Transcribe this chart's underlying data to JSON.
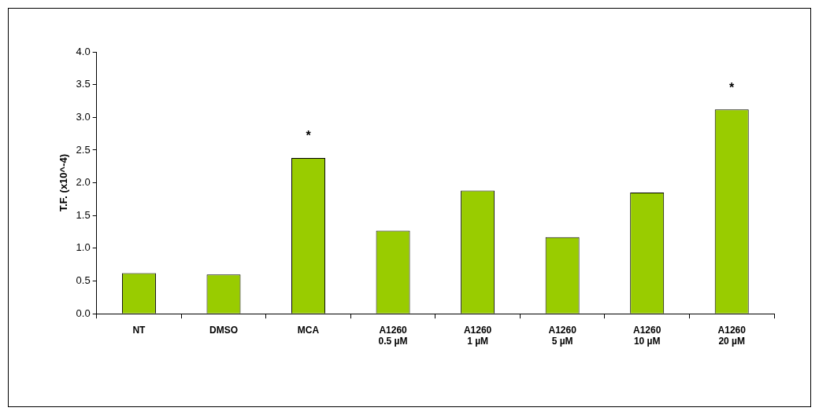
{
  "chart_data": {
    "type": "bar",
    "ylabel": "T.F. (x10^-4)",
    "categories": [
      "NT",
      "DMSO",
      "MCA",
      "A1260\n0.5 µM",
      "A1260\n1 µM",
      "A1260\n5 µM",
      "A1260\n10 µM",
      "A1260\n20 µM"
    ],
    "values": [
      0.62,
      0.6,
      2.38,
      1.27,
      1.88,
      1.17,
      1.85,
      3.12
    ],
    "color": "#99cc00",
    "ylim": [
      0,
      4.0
    ],
    "yticks": [
      {
        "value": 0,
        "label": "0.0"
      },
      {
        "value": 0.5,
        "label": "0.5"
      },
      {
        "value": 1,
        "label": "1.0"
      },
      {
        "value": 1.5,
        "label": "1.5"
      },
      {
        "value": 2,
        "label": "2.0"
      },
      {
        "value": 2.5,
        "label": "2.5"
      },
      {
        "value": 3,
        "label": "3.0"
      },
      {
        "value": 3.5,
        "label": "3.5"
      },
      {
        "value": 4,
        "label": "4.0"
      }
    ],
    "annotations": [
      {
        "text": "*",
        "x": "MCA",
        "y": 2.38
      },
      {
        "text": "*",
        "x": "A1260\n20 µM",
        "y": 3.12
      }
    ],
    "grid": false,
    "legend": false
  }
}
